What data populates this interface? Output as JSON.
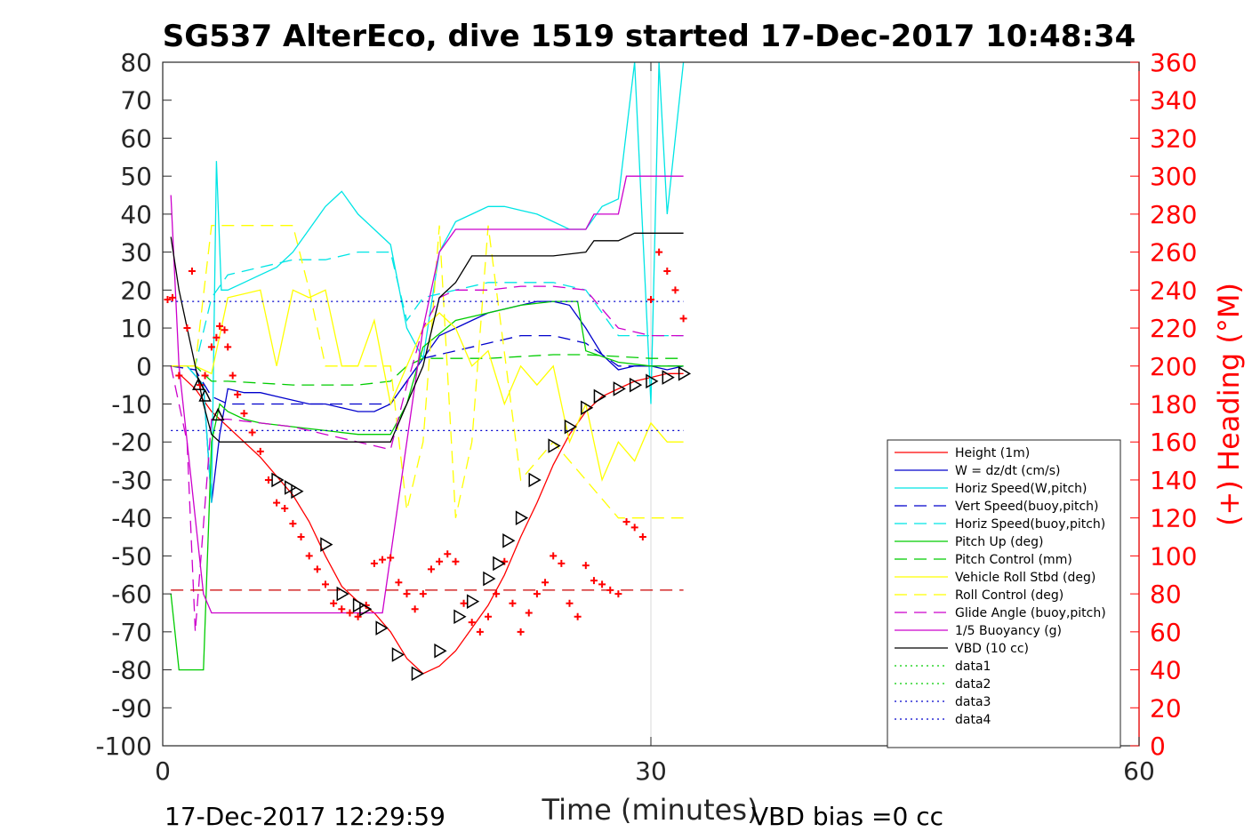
{
  "chart_data": {
    "type": "line",
    "title": "SG537 AlterEco, dive 1519 started 17-Dec-2017 10:48:34",
    "xlabel": "Time (minutes)",
    "ylabel_left": "",
    "ylabel_right": "(+) Heading (°M)",
    "xlim": [
      0,
      60
    ],
    "ylim_left": [
      -100,
      80
    ],
    "ylim_right": [
      0,
      360
    ],
    "x_ticks": [
      "0",
      "30",
      "60"
    ],
    "y_ticks_left": [
      "80",
      "70",
      "60",
      "50",
      "40",
      "30",
      "20",
      "10",
      "0",
      "-10",
      "-20",
      "-30",
      "-40",
      "-50",
      "-60",
      "-70",
      "-80",
      "-90",
      "-100"
    ],
    "y_ticks_right": [
      "360",
      "340",
      "320",
      "300",
      "280",
      "260",
      "240",
      "220",
      "200",
      "180",
      "160",
      "140",
      "120",
      "100",
      "80",
      "60",
      "40",
      "20",
      "0"
    ],
    "grid": "x-at-30",
    "legend_position": "lower-right",
    "footer_left": "17-Dec-2017 12:29:59",
    "footer_right": "VBD bias =0 cc",
    "colors": {
      "height": "#ff0000",
      "w": "#0000cc",
      "horiz": "#00e5e5",
      "vert_buoy": "#0000cc",
      "horiz_buoy": "#00e5e5",
      "pitch": "#00cc00",
      "pitch_ctrl": "#00cc00",
      "roll": "#ffff00",
      "roll_ctrl": "#ffff00",
      "glide": "#cc00cc",
      "buoy": "#cc00cc",
      "vbd": "#000000",
      "data1": "#00cc00",
      "data2": "#00cc00",
      "data3": "#0000cc",
      "data4": "#0000cc",
      "heading": "#ff0000",
      "marker": "#000000",
      "ref_dashed": "#cc0000"
    },
    "series": [
      {
        "name": "Height (1m)",
        "key": "height",
        "style": "solid",
        "x": [
          1,
          2,
          3,
          4,
          5,
          6,
          7,
          8,
          9,
          10,
          11,
          12,
          13,
          14,
          15,
          16,
          17,
          18,
          19,
          20,
          21,
          22,
          23,
          24,
          25,
          26,
          27,
          28,
          29,
          30,
          31,
          32
        ],
        "y": [
          -2,
          -6,
          -12,
          -16,
          -20,
          -24,
          -29,
          -34,
          -41,
          -50,
          -58,
          -62,
          -65,
          -70,
          -77,
          -81,
          -79,
          -75,
          -69,
          -63,
          -55,
          -45,
          -36,
          -26,
          -18,
          -12,
          -8,
          -6,
          -4,
          -3,
          -2,
          -2
        ]
      },
      {
        "name": "W = dz/dt (cm/s)",
        "key": "w",
        "style": "solid",
        "x": [
          0.5,
          1.5,
          2.5,
          3,
          3.5,
          4,
          5,
          6,
          7,
          8,
          9,
          10,
          11,
          12,
          13,
          14,
          15,
          16,
          17,
          18,
          19,
          20,
          21,
          22,
          23,
          24,
          25,
          26,
          27,
          28,
          29,
          30,
          31,
          32
        ],
        "y": [
          0,
          0,
          -5,
          -36,
          -18,
          -6,
          -7,
          -7,
          -8,
          -9,
          -10,
          -10,
          -11,
          -12,
          -12,
          -10,
          -4,
          2,
          8,
          10,
          12,
          14,
          15,
          16,
          17,
          17,
          16,
          10,
          3,
          -1,
          0,
          0,
          -1,
          0
        ]
      },
      {
        "name": "Horiz Speed(W,pitch)",
        "key": "horiz",
        "style": "solid",
        "x": [
          0.5,
          1.5,
          2.5,
          3,
          3.3,
          3.6,
          4,
          5,
          6,
          7,
          8,
          9,
          10,
          11,
          12,
          13,
          14,
          15,
          16,
          17,
          18,
          19,
          20,
          21,
          22,
          23,
          24,
          25,
          26,
          27,
          28,
          29,
          30,
          30.5,
          31,
          32
        ],
        "y": [
          0,
          0,
          -5,
          -36,
          54,
          20,
          20,
          22,
          24,
          26,
          30,
          36,
          42,
          46,
          40,
          36,
          32,
          10,
          2,
          30,
          38,
          40,
          42,
          42,
          41,
          40,
          38,
          36,
          36,
          42,
          44,
          80,
          -10,
          80,
          40,
          80
        ]
      },
      {
        "name": "Vert Speed(buoy,pitch)",
        "key": "vert_buoy",
        "style": "dashed",
        "x": [
          0.5,
          2,
          3,
          4,
          6,
          8,
          10,
          12,
          14,
          15,
          16,
          18,
          20,
          22,
          24,
          26,
          28,
          30,
          32
        ],
        "y": [
          0,
          -1,
          -8,
          -10,
          -10,
          -10,
          -10,
          -10,
          -10,
          -4,
          2,
          4,
          6,
          8,
          8,
          6,
          0,
          0,
          0
        ]
      },
      {
        "name": "Horiz Speed(buoy,pitch)",
        "key": "horiz_buoy",
        "style": "dashed",
        "x": [
          0.5,
          2,
          3,
          4,
          6,
          8,
          10,
          12,
          14,
          15,
          16,
          18,
          20,
          22,
          24,
          26,
          28,
          30,
          32
        ],
        "y": [
          0,
          0,
          18,
          24,
          26,
          28,
          28,
          30,
          30,
          12,
          18,
          20,
          22,
          22,
          22,
          20,
          8,
          8,
          8
        ]
      },
      {
        "name": "Pitch Up (deg)",
        "key": "pitch",
        "style": "solid",
        "x": [
          0.5,
          1,
          1.5,
          2,
          2.5,
          3,
          3.5,
          4,
          5,
          6,
          8,
          10,
          12,
          14,
          15,
          16,
          18,
          20,
          22,
          24,
          25.5,
          26,
          28,
          30,
          32
        ],
        "y": [
          -60,
          -80,
          -80,
          -80,
          -80,
          -20,
          -10,
          -12,
          -14,
          -15,
          -16,
          -17,
          -18,
          -18,
          -10,
          5,
          12,
          14,
          16,
          17,
          17,
          4,
          1,
          0,
          0
        ]
      },
      {
        "name": "Pitch Control (mm)",
        "key": "pitch_ctrl",
        "style": "dashed",
        "x": [
          0.5,
          2,
          3,
          4,
          8,
          12,
          14,
          15,
          16,
          20,
          24,
          26,
          30,
          32
        ],
        "y": [
          0,
          0,
          -4,
          -4,
          -5,
          -5,
          -4,
          0,
          2,
          2,
          3,
          3,
          2,
          2
        ]
      },
      {
        "name": "Vehicle Roll Stbd (deg)",
        "key": "roll",
        "style": "solid",
        "x": [
          0.5,
          2,
          3,
          4,
          6,
          7,
          8,
          9,
          10,
          11,
          12,
          13,
          14,
          15,
          16,
          17,
          18,
          19,
          20,
          21,
          22,
          23,
          24,
          25,
          26,
          27,
          28,
          29,
          30,
          31,
          32
        ],
        "y": [
          0,
          0,
          -2,
          18,
          20,
          0,
          20,
          18,
          20,
          0,
          0,
          12,
          -10,
          0,
          10,
          14,
          10,
          0,
          4,
          -10,
          0,
          -5,
          0,
          -20,
          -10,
          -30,
          -20,
          -25,
          -15,
          -20,
          -20
        ]
      },
      {
        "name": "Roll Control (deg)",
        "key": "roll_ctrl",
        "style": "dashed",
        "x": [
          0.5,
          2,
          3,
          3.5,
          5,
          7,
          8,
          9,
          10,
          12,
          14,
          15,
          16,
          17,
          18,
          19,
          20,
          22,
          24,
          26,
          28,
          30,
          32
        ],
        "y": [
          0,
          0,
          37,
          37,
          37,
          37,
          37,
          20,
          0,
          0,
          0,
          -38,
          -20,
          37,
          -40,
          -20,
          37,
          -30,
          -20,
          -30,
          -40,
          -40,
          -40
        ]
      },
      {
        "name": "Glide Angle (buoy,pitch)",
        "key": "glide",
        "style": "dashed",
        "x": [
          0.5,
          1.5,
          2,
          3,
          4,
          6,
          8,
          10,
          12,
          14,
          15,
          16,
          17,
          18,
          20,
          22,
          24,
          26,
          28,
          30,
          32
        ],
        "y": [
          0,
          -20,
          -70,
          -14,
          -14,
          -15,
          -16,
          -18,
          -20,
          -22,
          -5,
          10,
          18,
          20,
          20,
          21,
          21,
          20,
          10,
          8,
          8
        ]
      },
      {
        "name": "1/5 Buoyancy (g)",
        "key": "buoy",
        "style": "solid",
        "x": [
          0.5,
          1,
          2,
          2.5,
          3,
          4,
          6,
          8,
          10,
          12,
          13.5,
          15,
          16,
          17,
          18,
          20,
          22,
          24,
          26,
          26.5,
          27,
          28,
          28.5,
          30,
          32
        ],
        "y": [
          45,
          0,
          -40,
          -60,
          -65,
          -65,
          -65,
          -65,
          -65,
          -65,
          -65,
          -20,
          10,
          30,
          36,
          36,
          36,
          36,
          36,
          40,
          40,
          40,
          50,
          50,
          50
        ]
      },
      {
        "name": "VBD (10 cc)",
        "key": "vbd",
        "style": "solid",
        "x": [
          0.5,
          1,
          2,
          2.5,
          3,
          3.5,
          4,
          6,
          8,
          10,
          12,
          14,
          15,
          16,
          17,
          18,
          19,
          20,
          22,
          24,
          26,
          26.5,
          28,
          29,
          30,
          32
        ],
        "y": [
          34,
          20,
          0,
          -10,
          -18,
          -20,
          -20,
          -20,
          -20,
          -20,
          -20,
          -20,
          -10,
          0,
          18,
          22,
          29,
          29,
          29,
          29,
          30,
          33,
          33,
          35,
          35,
          35
        ]
      },
      {
        "name": "data1",
        "key": "data1",
        "style": "dotted",
        "x": [],
        "y": []
      },
      {
        "name": "data2",
        "key": "data2",
        "style": "dotted",
        "x": [],
        "y": []
      },
      {
        "name": "data3",
        "key": "data3",
        "style": "dotted",
        "x": [
          0.5,
          32
        ],
        "y": [
          17,
          17
        ]
      },
      {
        "name": "data4",
        "key": "data4",
        "style": "dotted",
        "x": [
          0.5,
          32
        ],
        "y": [
          -17,
          -17
        ]
      }
    ],
    "reference_lines": [
      {
        "key": "ref_dashed",
        "style": "dashed",
        "y": -59,
        "x": [
          0.5,
          32
        ]
      }
    ],
    "heading_points": {
      "x": [
        0.3,
        0.6,
        1,
        1.5,
        1.8,
        2.3,
        2.6,
        3,
        3.3,
        3.5,
        3.8,
        4,
        4.3,
        4.6,
        5,
        5.5,
        6,
        6.5,
        7,
        7.5,
        8,
        8.5,
        9,
        9.5,
        10,
        10.5,
        11,
        11.5,
        12,
        12.5,
        13,
        13.5,
        14,
        14.5,
        15,
        15.5,
        16,
        16.5,
        17,
        17.5,
        18,
        18.5,
        19,
        19.5,
        20,
        20.5,
        21,
        21.5,
        22,
        22.5,
        23,
        23.5,
        24,
        24.5,
        25,
        25.5,
        26,
        26.5,
        27,
        27.5,
        28,
        28.5,
        29,
        29.5,
        30,
        30.5,
        31,
        31.5,
        32
      ],
      "y": [
        235,
        236,
        195,
        220,
        250,
        190,
        195,
        210,
        215,
        221,
        219,
        210,
        195,
        185,
        175,
        165,
        155,
        140,
        128,
        125,
        117,
        110,
        100,
        93,
        85,
        75,
        72,
        70,
        68,
        74,
        96,
        98,
        99,
        86,
        80,
        72,
        80,
        93,
        97,
        101,
        97,
        75,
        65,
        60,
        68,
        80,
        97,
        75,
        60,
        70,
        80,
        86,
        100,
        96,
        75,
        68,
        95,
        87,
        85,
        82,
        80,
        118,
        115,
        110,
        235,
        260,
        250,
        240,
        225
      ]
    },
    "triangle_markers": {
      "x": [
        2.2,
        2.6,
        3.4,
        7,
        7.8,
        8.2,
        10,
        11,
        12,
        12.4,
        13.4,
        14.4,
        15.6,
        17,
        18.2,
        19,
        20,
        20.6,
        21.2,
        22,
        22.8,
        24,
        25,
        26,
        26.8,
        28,
        29,
        30,
        31,
        32
      ],
      "y": [
        -5,
        -8,
        -13,
        -30,
        -32,
        -33,
        -47,
        -60,
        -63,
        -64,
        -69,
        -76,
        -81,
        -75,
        -66,
        -62,
        -56,
        -52,
        -46,
        -40,
        -30,
        -21,
        -16,
        -11,
        -8,
        -6,
        -5,
        -4,
        -3,
        -2
      ]
    }
  }
}
